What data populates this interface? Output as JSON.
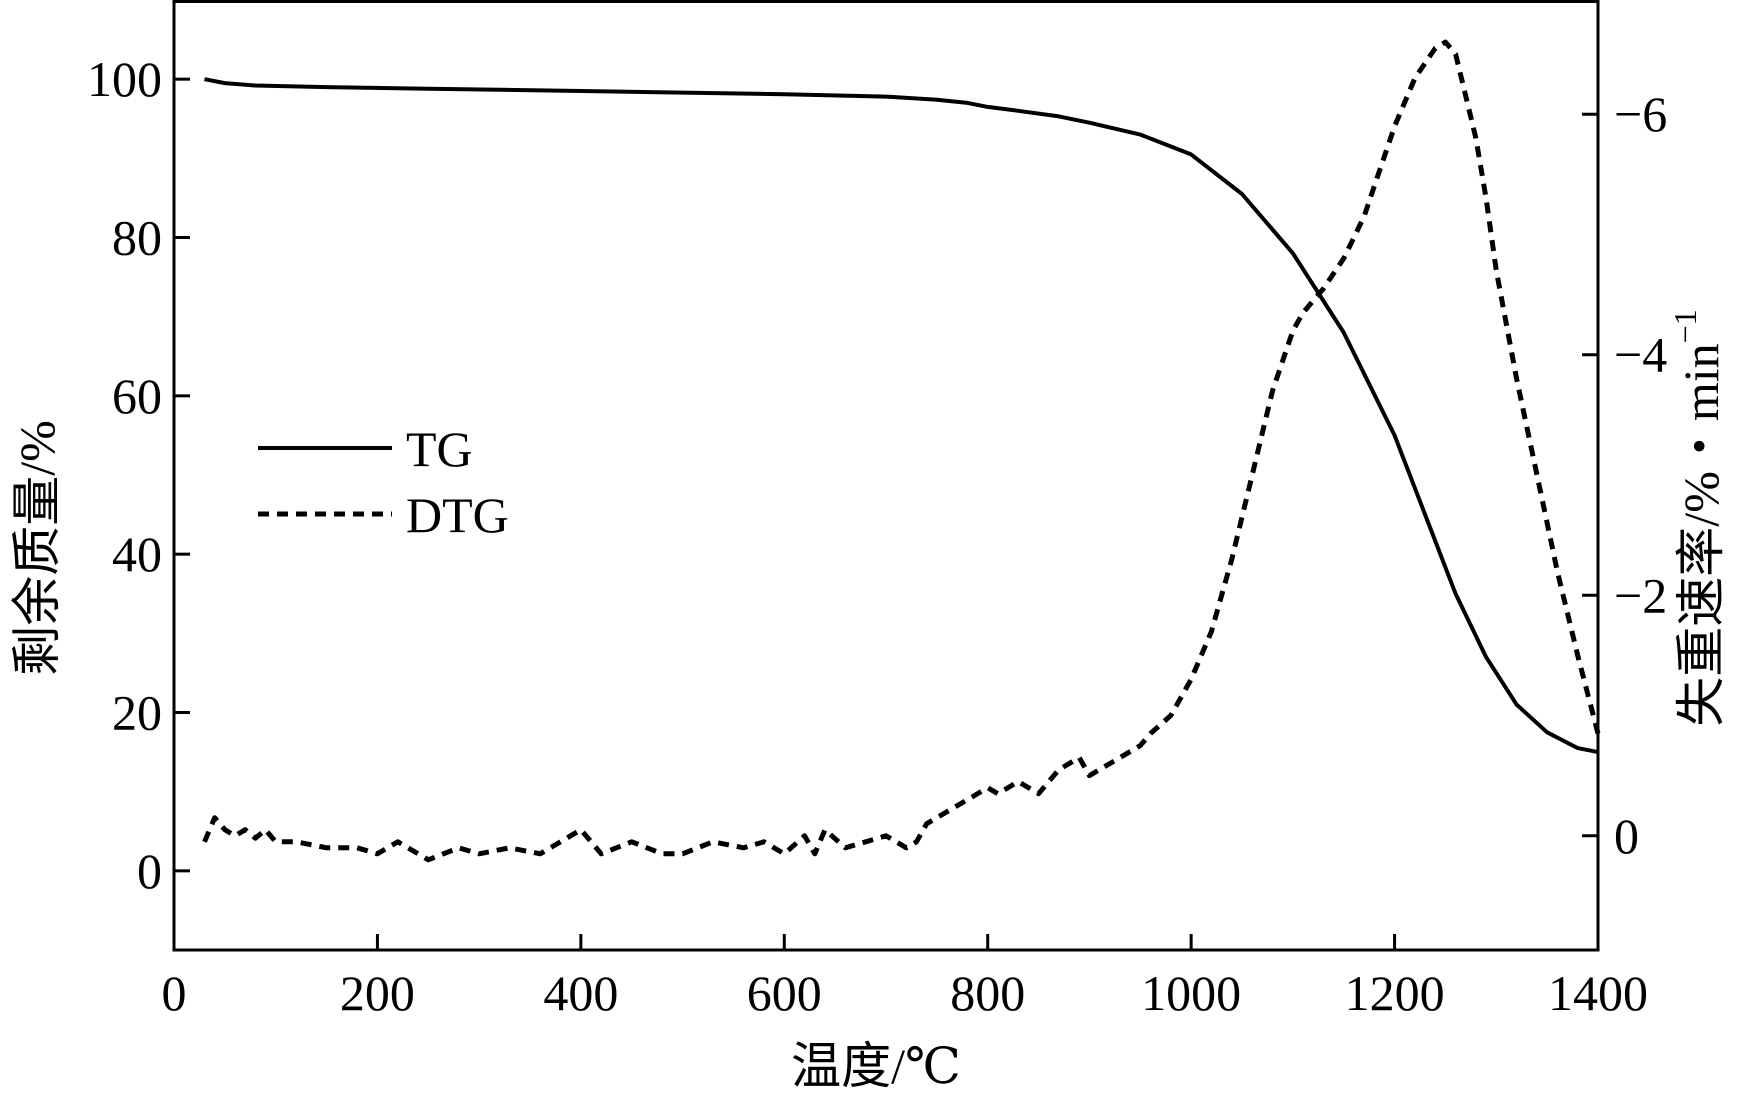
{
  "chart_data": {
    "type": "line",
    "xlabel": "温度/℃",
    "ylabel_left": "剩余质量/%",
    "ylabel_right": "失重速率/%・min",
    "ylabel_right_superscript": "−1",
    "xlim": [
      0,
      1400
    ],
    "ylim_left": [
      -10,
      110
    ],
    "ylim_right": [
      0.95,
      -6.95
    ],
    "x_ticks": [
      0,
      200,
      400,
      600,
      800,
      1000,
      1200,
      1400
    ],
    "x_tick_labels": [
      "0",
      "200",
      "400",
      "600",
      "800",
      "1000",
      "1200",
      "1400"
    ],
    "y_left_ticks": [
      0,
      20,
      40,
      60,
      80,
      100
    ],
    "y_left_tick_labels": [
      "0",
      "20",
      "40",
      "60",
      "80",
      "100"
    ],
    "y_right_ticks": [
      0,
      -2,
      -4,
      -6
    ],
    "y_right_tick_labels": [
      "0",
      "−2",
      "−4",
      "−6"
    ],
    "grid": false,
    "legend_position": "middle-left",
    "series": [
      {
        "name": "TG",
        "axis": "left",
        "style": "solid",
        "color": "#000000",
        "x": [
          30,
          50,
          80,
          150,
          250,
          400,
          500,
          600,
          700,
          750,
          780,
          800,
          830,
          870,
          900,
          950,
          1000,
          1050,
          1100,
          1150,
          1200,
          1230,
          1260,
          1290,
          1320,
          1350,
          1380,
          1400
        ],
        "y": [
          100,
          99.5,
          99.2,
          99,
          98.8,
          98.5,
          98.3,
          98.1,
          97.8,
          97.4,
          97,
          96.5,
          96,
          95.3,
          94.5,
          93,
          90.5,
          85.5,
          78,
          68,
          55,
          45,
          35,
          27,
          21,
          17.5,
          15.5,
          15
        ]
      },
      {
        "name": "DTG",
        "axis": "right",
        "style": "dashed",
        "color": "#000000",
        "x": [
          30,
          40,
          50,
          60,
          70,
          80,
          90,
          100,
          120,
          150,
          180,
          200,
          220,
          250,
          280,
          300,
          330,
          360,
          380,
          400,
          420,
          450,
          480,
          500,
          530,
          560,
          580,
          600,
          620,
          630,
          640,
          660,
          680,
          700,
          720,
          730,
          740,
          760,
          780,
          800,
          810,
          830,
          850,
          870,
          890,
          900,
          920,
          950,
          960,
          980,
          1000,
          1020,
          1040,
          1060,
          1080,
          1100,
          1110,
          1130,
          1150,
          1170,
          1180,
          1200,
          1220,
          1240,
          1250,
          1260,
          1270,
          1280,
          1290,
          1300,
          1320,
          1340,
          1360,
          1380,
          1400
        ],
        "y": [
          0.05,
          -0.15,
          -0.05,
          0.0,
          -0.05,
          0.02,
          -0.05,
          0.05,
          0.05,
          0.1,
          0.1,
          0.15,
          0.05,
          0.2,
          0.1,
          0.15,
          0.1,
          0.15,
          0.05,
          -0.05,
          0.15,
          0.05,
          0.15,
          0.15,
          0.05,
          0.1,
          0.05,
          0.15,
          0.0,
          0.15,
          -0.05,
          0.1,
          0.05,
          0.0,
          0.1,
          0.05,
          -0.1,
          -0.2,
          -0.3,
          -0.4,
          -0.35,
          -0.45,
          -0.35,
          -0.55,
          -0.65,
          -0.5,
          -0.6,
          -0.75,
          -0.85,
          -1.0,
          -1.3,
          -1.7,
          -2.3,
          -3.0,
          -3.7,
          -4.2,
          -4.35,
          -4.55,
          -4.8,
          -5.15,
          -5.4,
          -5.9,
          -6.3,
          -6.55,
          -6.6,
          -6.5,
          -6.15,
          -5.8,
          -5.3,
          -4.7,
          -3.8,
          -3.0,
          -2.2,
          -1.5,
          -0.85
        ]
      }
    ]
  }
}
